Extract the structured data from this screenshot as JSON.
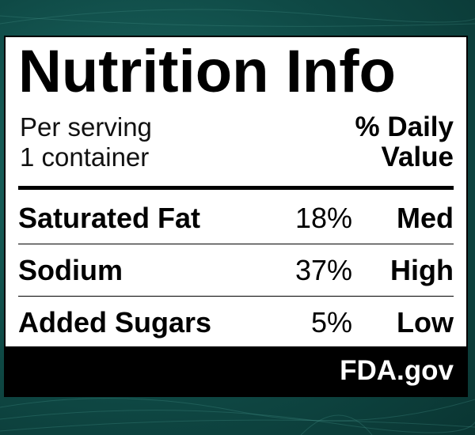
{
  "label": {
    "title": "Nutrition Info",
    "serving_line1": "Per serving",
    "serving_line2": "1 container",
    "dv_line1": "% Daily",
    "dv_line2": "Value",
    "rows": [
      {
        "nutrient": "Saturated Fat",
        "percent": "18%",
        "level": "Med"
      },
      {
        "nutrient": "Sodium",
        "percent": "37%",
        "level": "High"
      },
      {
        "nutrient": "Added Sugars",
        "percent": "5%",
        "level": "Low"
      }
    ],
    "footer": "FDA.gov"
  },
  "colors": {
    "background": "#0f4a46",
    "label": "#ffffff",
    "ink": "#000000"
  }
}
